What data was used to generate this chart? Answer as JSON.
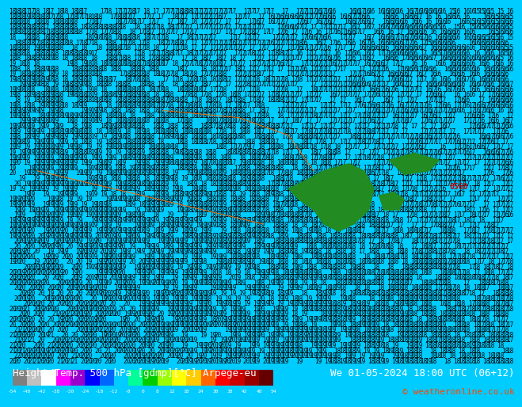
{
  "title_left": "Height/Temp. 500 hPa [gdmp][°C] Arpege-eu",
  "title_right": "We 01-05-2024 18:00 UTC (06+12)",
  "copyright": "© weatheronline.co.uk",
  "colorbar_tick_labels": [
    "-54",
    "-48",
    "-42",
    "-38",
    "-30",
    "-24",
    "-18",
    "-12",
    "-8",
    "0",
    "8",
    "12",
    "18",
    "24",
    "30",
    "38",
    "42",
    "48",
    "54"
  ],
  "colorbar_colors": [
    "#7f7f7f",
    "#bfbfbf",
    "#ffffff",
    "#ff00ff",
    "#9900cc",
    "#0000ff",
    "#0066ff",
    "#00ccff",
    "#00ff99",
    "#00cc00",
    "#99ff00",
    "#ffff00",
    "#ffcc00",
    "#ff6600",
    "#ff0000",
    "#cc0000",
    "#990000",
    "#660000"
  ],
  "bg_color": "#00ccff",
  "bottom_bar_color": "#000000",
  "text_color_copyright": "#ff4400",
  "font_size_title": 9,
  "font_size_copyright": 8,
  "contour_numbers_color": "#000000",
  "land_color": "#228B22"
}
